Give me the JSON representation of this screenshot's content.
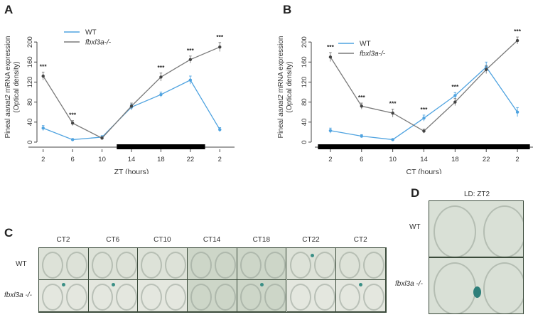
{
  "panels": {
    "a_letter": "A",
    "b_letter": "B",
    "c_letter": "C",
    "d_letter": "D"
  },
  "chart_data": [
    {
      "type": "line",
      "panel": "A",
      "ylabel_pre": "Pineal ",
      "ylabel_italic": "aanat2",
      "ylabel_post": " mRNA expression",
      "ylabel2": "(Optical density)",
      "xlabel": "ZT (hours)",
      "categories": [
        "2",
        "6",
        "10",
        "14",
        "18",
        "22",
        "2"
      ],
      "yticks": [
        "0",
        "40",
        "80",
        "120",
        "160",
        "200"
      ],
      "ylim": [
        -10,
        230
      ],
      "dark_bar": {
        "from_index": 2.5,
        "to_index": 5.5
      },
      "legend": [
        "WT",
        "fbxl3a-/-"
      ],
      "legend_position": "top-left",
      "series": [
        {
          "name": "WT",
          "color": "#4fa3e0",
          "values": [
            28,
            5,
            10,
            70,
            95,
            124,
            25
          ],
          "err": [
            5,
            2,
            3,
            6,
            5,
            8,
            4
          ]
        },
        {
          "name": "fbxl3a-/-",
          "color": "#7a7a7a",
          "values": [
            132,
            38,
            8,
            72,
            130,
            165,
            190
          ],
          "err": [
            8,
            5,
            3,
            6,
            8,
            7,
            9
          ]
        }
      ],
      "significance": [
        "***",
        "***",
        "",
        "",
        "***",
        "***",
        "***"
      ]
    },
    {
      "type": "line",
      "panel": "B",
      "ylabel_pre": "Pineal ",
      "ylabel_italic": "aanat2",
      "ylabel_post": " mRNA expression",
      "ylabel2": "(Optical density)",
      "xlabel": "CT (hours)",
      "categories": [
        "2",
        "6",
        "10",
        "14",
        "18",
        "22",
        "2"
      ],
      "yticks": [
        "0",
        "40",
        "80",
        "120",
        "160",
        "200"
      ],
      "ylim": [
        -10,
        230
      ],
      "dark_bar": {
        "from_index": -0.4,
        "to_index": 6.4
      },
      "legend": [
        "WT",
        "fbxl3a-/-"
      ],
      "legend_position": "top-left",
      "series": [
        {
          "name": "WT",
          "color": "#4fa3e0",
          "values": [
            23,
            12,
            5,
            48,
            93,
            150,
            60
          ],
          "err": [
            5,
            3,
            2,
            6,
            6,
            10,
            9
          ]
        },
        {
          "name": "fbxl3a-/-",
          "color": "#7a7a7a",
          "values": [
            170,
            72,
            58,
            22,
            80,
            145,
            203
          ],
          "err": [
            9,
            6,
            8,
            4,
            7,
            8,
            7
          ]
        }
      ],
      "significance": [
        "***",
        "***",
        "***",
        "***",
        "***",
        "",
        "***"
      ]
    }
  ],
  "panel_c": {
    "columns": [
      "CT2",
      "CT6",
      "CT10",
      "CT14",
      "CT18",
      "CT22",
      "CT2"
    ],
    "rows": [
      "WT",
      "fbxl3a -/-"
    ]
  },
  "panel_d": {
    "title": "LD: ZT2",
    "rows": [
      "WT",
      "fbxl3a -/-"
    ]
  }
}
